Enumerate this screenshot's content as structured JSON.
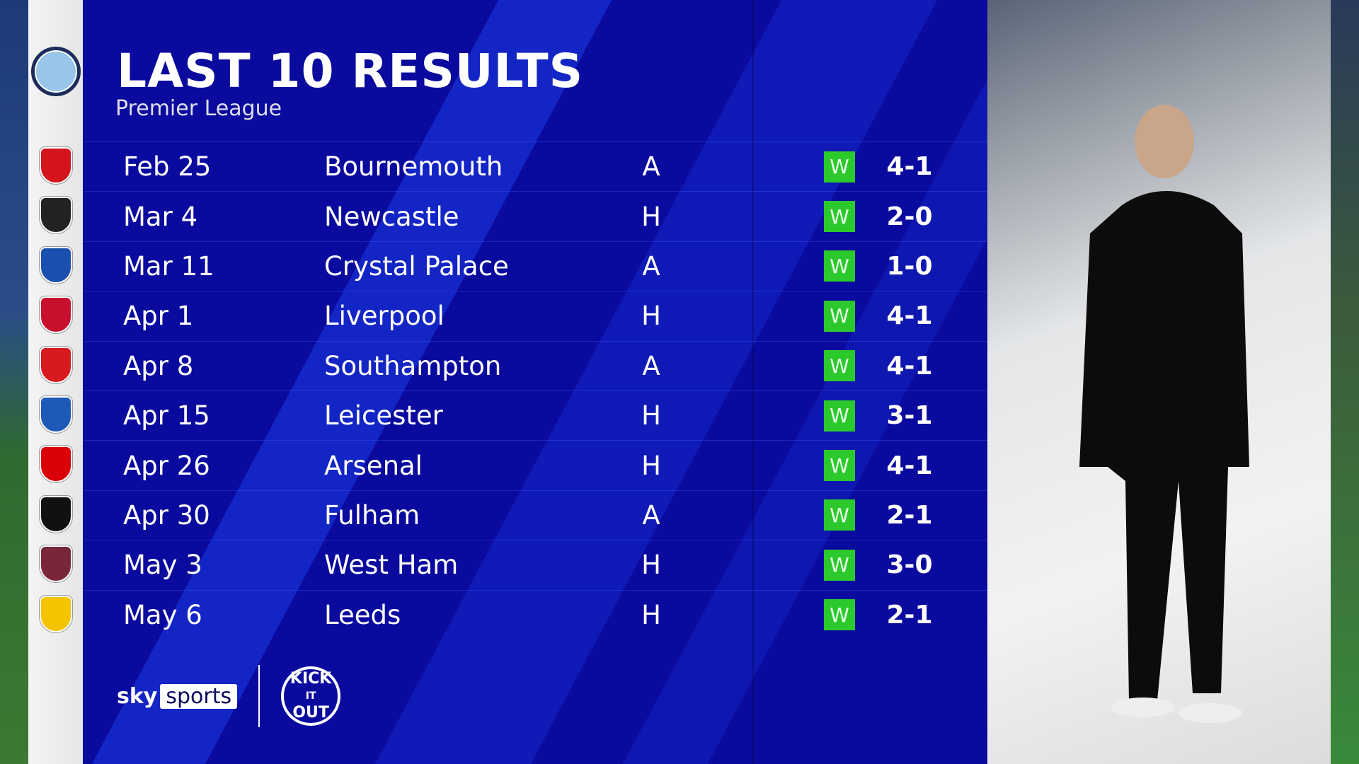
{
  "header": {
    "title": "LAST 10 RESULTS",
    "subtitle": "Premier League"
  },
  "team_badge": "manchester-city-crest",
  "colors": {
    "panel": "#0a0a9e",
    "win": "#2bc92b",
    "badge_column": "#f0f0f0"
  },
  "results": [
    {
      "date": "Feb 25",
      "opponent": "Bournemouth",
      "venue": "A",
      "result": "W",
      "score": "4-1",
      "crest_color": "#d4141c"
    },
    {
      "date": "Mar 4",
      "opponent": "Newcastle",
      "venue": "H",
      "result": "W",
      "score": "2-0",
      "crest_color": "#222222"
    },
    {
      "date": "Mar 11",
      "opponent": "Crystal Palace",
      "venue": "A",
      "result": "W",
      "score": "1-0",
      "crest_color": "#1b4fb0"
    },
    {
      "date": "Apr 1",
      "opponent": "Liverpool",
      "venue": "H",
      "result": "W",
      "score": "4-1",
      "crest_color": "#c8102e"
    },
    {
      "date": "Apr 8",
      "opponent": "Southampton",
      "venue": "A",
      "result": "W",
      "score": "4-1",
      "crest_color": "#d71920"
    },
    {
      "date": "Apr 15",
      "opponent": "Leicester",
      "venue": "H",
      "result": "W",
      "score": "3-1",
      "crest_color": "#1d5ab8"
    },
    {
      "date": "Apr 26",
      "opponent": "Arsenal",
      "venue": "H",
      "result": "W",
      "score": "4-1",
      "crest_color": "#db0007"
    },
    {
      "date": "Apr 30",
      "opponent": "Fulham",
      "venue": "A",
      "result": "W",
      "score": "2-1",
      "crest_color": "#111111"
    },
    {
      "date": "May 3",
      "opponent": "West Ham",
      "venue": "H",
      "result": "W",
      "score": "3-0",
      "crest_color": "#7a263a"
    },
    {
      "date": "May 6",
      "opponent": "Leeds",
      "venue": "H",
      "result": "W",
      "score": "2-1",
      "crest_color": "#f4c400"
    }
  ],
  "footer": {
    "broadcaster_a": "sky",
    "broadcaster_b": "sports",
    "campaign": "KICK IT OUT"
  }
}
